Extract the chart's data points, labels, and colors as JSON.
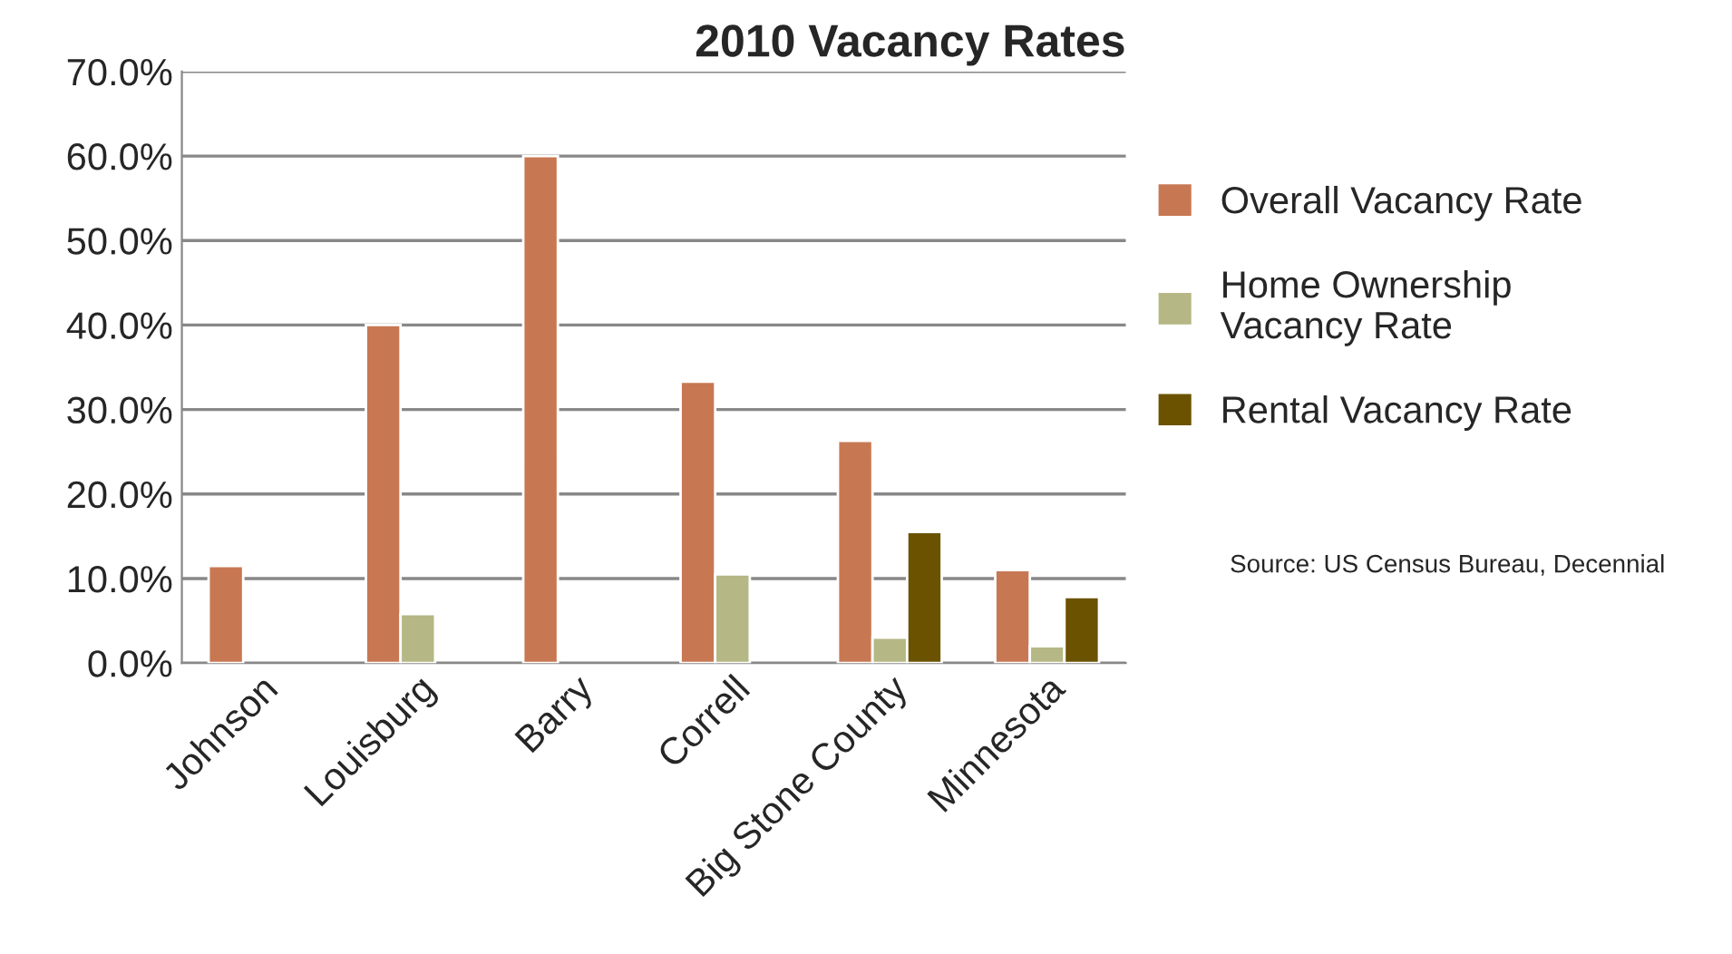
{
  "chart_data": {
    "type": "bar",
    "title": "2010 Vacancy Rates",
    "categories": [
      "Johnson",
      "Louisburg",
      "Barry",
      "Correll",
      "Big Stone County",
      "Minnesota"
    ],
    "series": [
      {
        "name": "Overall Vacancy Rate",
        "color": "#c77852",
        "values": [
          11.5,
          40.0,
          60.0,
          33.3,
          26.3,
          11.0
        ]
      },
      {
        "name": "Home Ownership\nVacancy Rate",
        "color": "#b5b785",
        "values": [
          null,
          5.8,
          null,
          10.5,
          3.0,
          2.0
        ]
      },
      {
        "name": "Rental Vacancy Rate",
        "color": "#6b5200",
        "values": [
          null,
          null,
          null,
          null,
          15.5,
          7.8
        ]
      }
    ],
    "ylim": [
      0,
      70
    ],
    "yticks": [
      {
        "value": 0,
        "label": "0.0%"
      },
      {
        "value": 10,
        "label": "10.0%"
      },
      {
        "value": 20,
        "label": "20.0%"
      },
      {
        "value": 30,
        "label": "30.0%"
      },
      {
        "value": 40,
        "label": "40.0%"
      },
      {
        "value": 50,
        "label": "50.0%"
      },
      {
        "value": 60,
        "label": "60.0%"
      },
      {
        "value": 70,
        "label": "70.0%"
      }
    ],
    "grid": "y",
    "legend": "right",
    "annotations": [
      "Source: US Census Bureau, Decennial"
    ]
  }
}
